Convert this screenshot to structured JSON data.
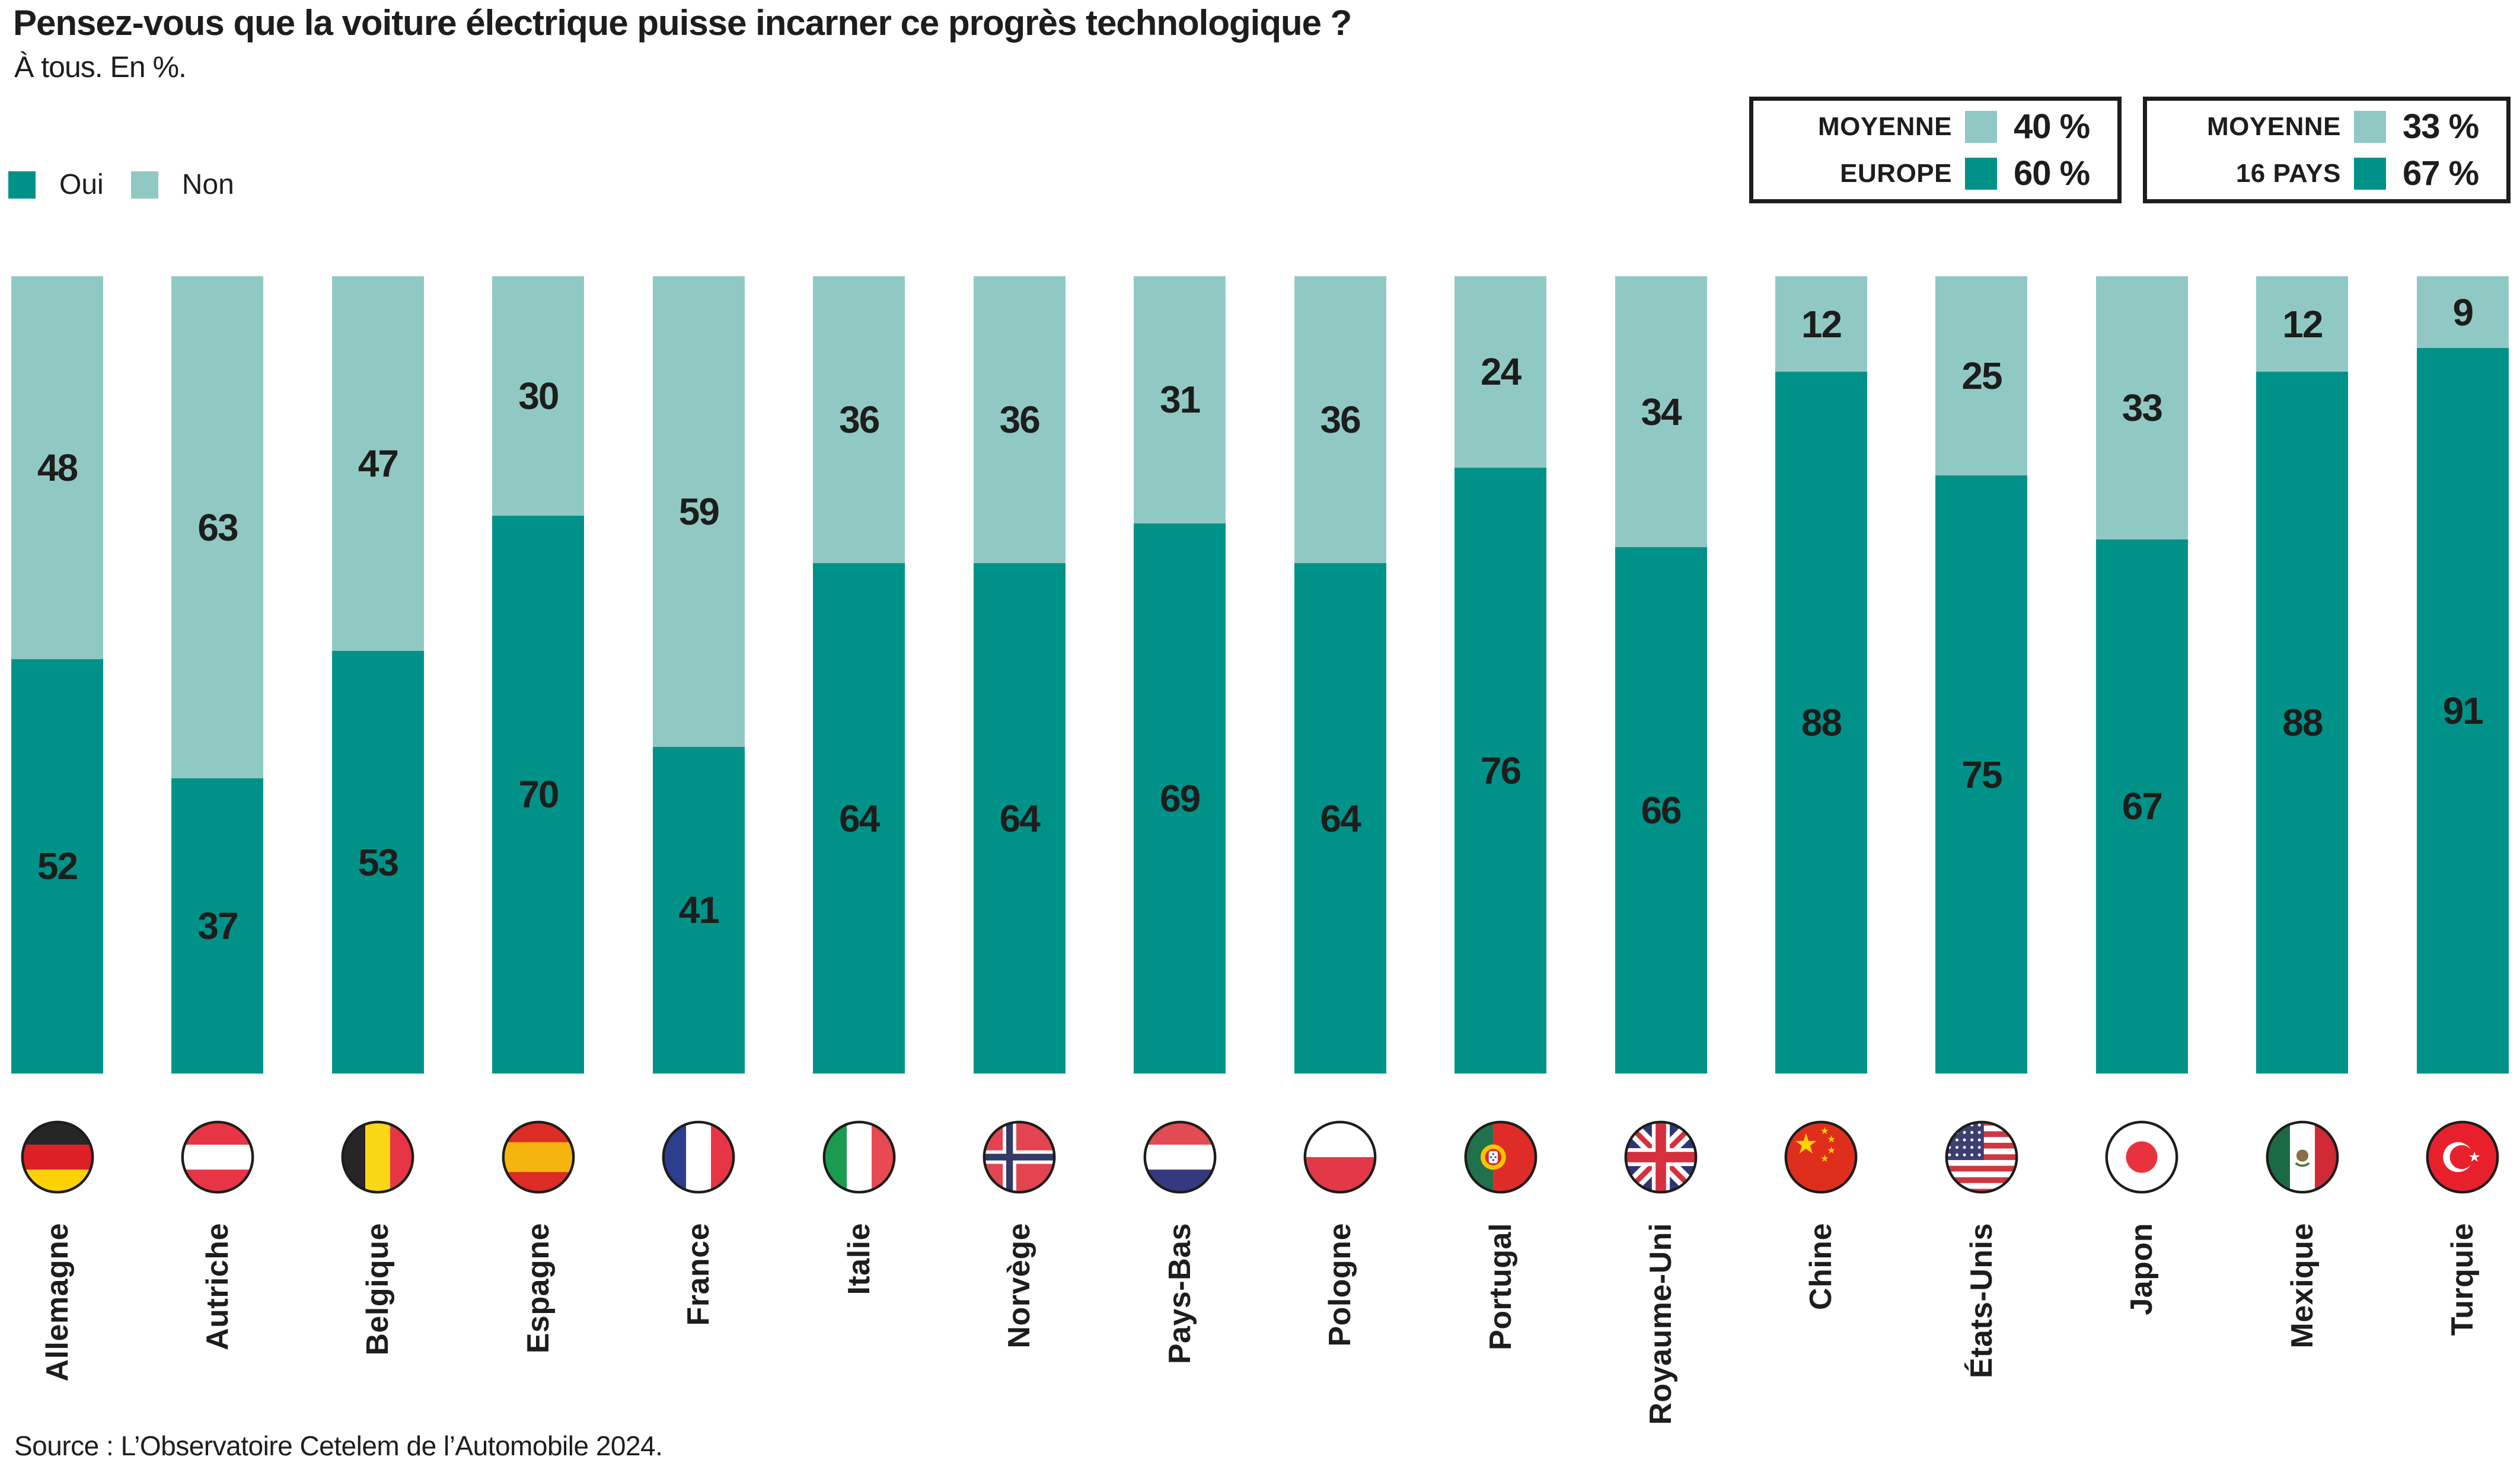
{
  "title": "Pensez-vous que la voiture électrique puisse incarner ce progrès technologique ?",
  "subtitle": "À tous. En %.",
  "legend": {
    "oui_label": "Oui",
    "non_label": "Non"
  },
  "colors": {
    "oui": "#009289",
    "non": "#90c9c4",
    "text": "#1d1d1b"
  },
  "summary_boxes": [
    {
      "line1": "MOYENNE",
      "line2": "EUROPE",
      "non_value": "40 %",
      "oui_value": "60 %"
    },
    {
      "line1": "MOYENNE",
      "line2": "16 PAYS",
      "non_value": "33 %",
      "oui_value": "67 %"
    }
  ],
  "source": "Source : L’Observatoire Cetelem de l’Automobile 2024.",
  "chart_data": {
    "type": "bar",
    "stacked": true,
    "unit": "%",
    "ylim": [
      0,
      100
    ],
    "grid": false,
    "legend_position": "top-left",
    "categories": [
      "Allemagne",
      "Autriche",
      "Belgique",
      "Espagne",
      "France",
      "Italie",
      "Norvège",
      "Pays-Bas",
      "Pologne",
      "Portugal",
      "Royaume-Uni",
      "Chine",
      "États-Unis",
      "Japon",
      "Mexique",
      "Turquie"
    ],
    "series": [
      {
        "name": "Oui",
        "color_key": "oui",
        "values": [
          52,
          37,
          53,
          70,
          41,
          64,
          64,
          69,
          64,
          76,
          66,
          88,
          75,
          67,
          88,
          91
        ]
      },
      {
        "name": "Non",
        "color_key": "non",
        "values": [
          48,
          63,
          47,
          30,
          59,
          36,
          36,
          31,
          36,
          24,
          34,
          12,
          25,
          33,
          12,
          9
        ]
      }
    ],
    "flag_icons": [
      "flag-allemagne",
      "flag-autriche",
      "flag-belgique",
      "flag-espagne",
      "flag-france",
      "flag-italie",
      "flag-norvege",
      "flag-pays-bas",
      "flag-pologne",
      "flag-portugal",
      "flag-royaume-uni",
      "flag-chine",
      "flag-etats-unis",
      "flag-japon",
      "flag-mexique",
      "flag-turquie"
    ]
  }
}
